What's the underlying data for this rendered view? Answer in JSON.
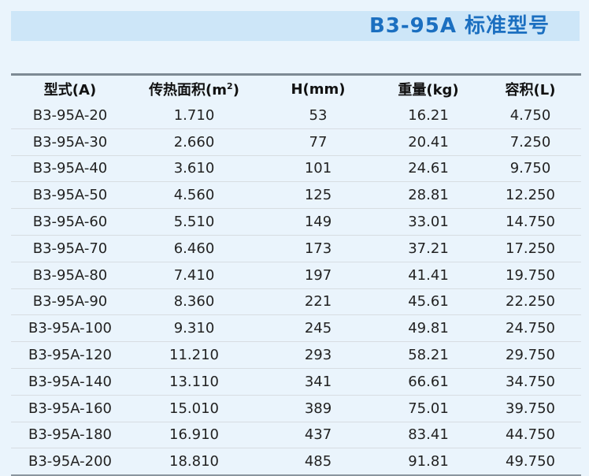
{
  "title": "B3-95A 标准型号",
  "table": {
    "headers": {
      "model": "型式(A)",
      "area_prefix": "传热面积(m",
      "area_sup": "2",
      "area_suffix": ")",
      "height": "H(mm)",
      "weight": "重量(kg)",
      "volume": "容积(L)"
    },
    "rows": [
      [
        "B3-95A-20",
        "1.710",
        "53",
        "16.21",
        "4.750"
      ],
      [
        "B3-95A-30",
        "2.660",
        "77",
        "20.41",
        "7.250"
      ],
      [
        "B3-95A-40",
        "3.610",
        "101",
        "24.61",
        "9.750"
      ],
      [
        "B3-95A-50",
        "4.560",
        "125",
        "28.81",
        "12.250"
      ],
      [
        "B3-95A-60",
        "5.510",
        "149",
        "33.01",
        "14.750"
      ],
      [
        "B3-95A-70",
        "6.460",
        "173",
        "37.21",
        "17.250"
      ],
      [
        "B3-95A-80",
        "7.410",
        "197",
        "41.41",
        "19.750"
      ],
      [
        "B3-95A-90",
        "8.360",
        "221",
        "45.61",
        "22.250"
      ],
      [
        "B3-95A-100",
        "9.310",
        "245",
        "49.81",
        "24.750"
      ],
      [
        "B3-95A-120",
        "11.210",
        "293",
        "58.21",
        "29.750"
      ],
      [
        "B3-95A-140",
        "13.110",
        "341",
        "66.61",
        "34.750"
      ],
      [
        "B3-95A-160",
        "15.010",
        "389",
        "75.01",
        "39.750"
      ],
      [
        "B3-95A-180",
        "16.910",
        "437",
        "83.41",
        "44.750"
      ],
      [
        "B3-95A-200",
        "18.810",
        "485",
        "91.81",
        "49.750"
      ]
    ]
  },
  "colors": {
    "background": "#eaf4fc",
    "title_bar": "#cde6f8",
    "title_text": "#1b6fc0",
    "rule": "#7d8a94"
  }
}
